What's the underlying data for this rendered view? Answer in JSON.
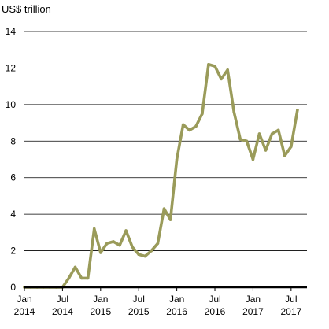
{
  "chart_data": {
    "type": "line",
    "title": "",
    "unit_label": "US$ trillion",
    "xlabel": "",
    "ylabel": "",
    "ylim": [
      0,
      14
    ],
    "yticks": [
      0,
      2,
      4,
      6,
      8,
      10,
      12,
      14
    ],
    "ytick_labels": [
      "0",
      "2",
      "4",
      "6",
      "8",
      "10",
      "12",
      "14"
    ],
    "grid": true,
    "xticks": [
      {
        "month": "Jan",
        "year": "2014"
      },
      {
        "month": "Jul",
        "year": "2014"
      },
      {
        "month": "Jan",
        "year": "2015"
      },
      {
        "month": "Jul",
        "year": "2015"
      },
      {
        "month": "Jan",
        "year": "2016"
      },
      {
        "month": "Jul",
        "year": "2016"
      },
      {
        "month": "Jan",
        "year": "2017"
      },
      {
        "month": "Jul",
        "year": "2017"
      }
    ],
    "colors": {
      "series": "#9a9b5a"
    },
    "series": [
      {
        "name": "",
        "x": [
          "2014-01",
          "2014-02",
          "2014-03",
          "2014-04",
          "2014-05",
          "2014-06",
          "2014-07",
          "2014-08",
          "2014-09",
          "2014-10",
          "2014-11",
          "2014-12",
          "2015-01",
          "2015-02",
          "2015-03",
          "2015-04",
          "2015-05",
          "2015-06",
          "2015-07",
          "2015-08",
          "2015-09",
          "2015-10",
          "2015-11",
          "2015-12",
          "2016-01",
          "2016-02",
          "2016-03",
          "2016-04",
          "2016-05",
          "2016-06",
          "2016-07",
          "2016-08",
          "2016-09",
          "2016-10",
          "2016-11",
          "2016-12",
          "2017-01",
          "2017-02",
          "2017-03",
          "2017-04",
          "2017-05",
          "2017-06",
          "2017-07",
          "2017-08"
        ],
        "values": [
          0,
          0,
          0,
          0,
          0,
          0,
          0,
          0.5,
          1.1,
          0.5,
          0.5,
          3.2,
          1.9,
          2.4,
          2.5,
          2.3,
          3.1,
          2.2,
          1.8,
          1.7,
          2.0,
          2.4,
          4.3,
          3.7,
          7.0,
          8.9,
          8.6,
          8.8,
          9.5,
          12.2,
          12.1,
          11.4,
          11.9,
          9.6,
          8.1,
          8.0,
          7.0,
          8.4,
          7.5,
          8.4,
          8.6,
          7.2,
          7.7,
          9.7
        ]
      }
    ]
  }
}
